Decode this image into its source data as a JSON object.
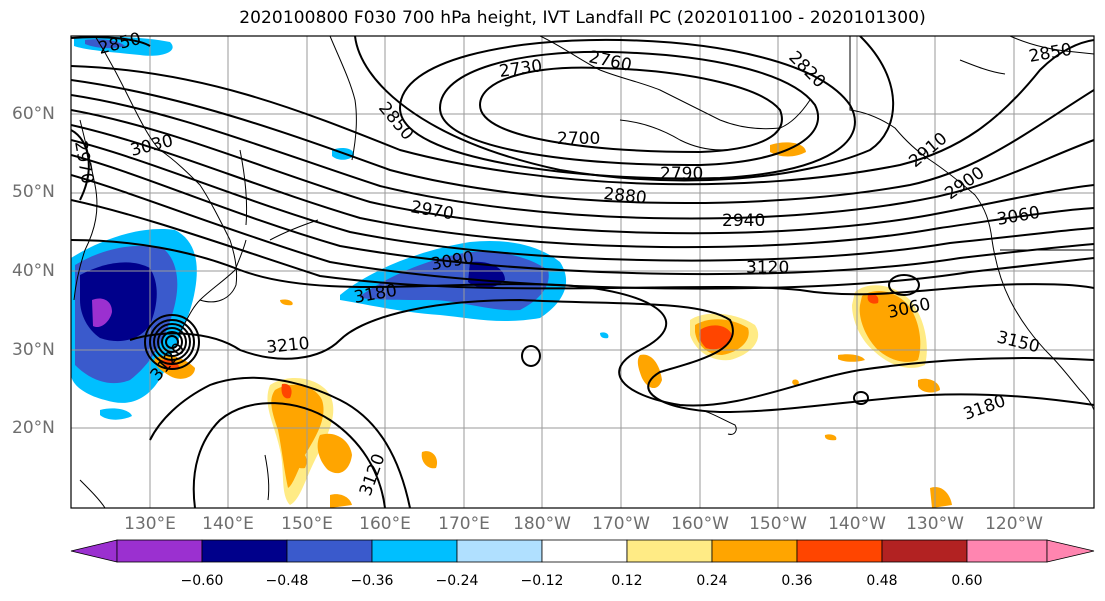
{
  "title": "2020100800 F030 700 hPa height, IVT Landfall PC (2020101100 - 2020101300)",
  "lat_labels": [
    "60°N",
    "50°N",
    "40°N",
    "30°N",
    "20°N"
  ],
  "lon_labels": [
    "130°E",
    "140°E",
    "150°E",
    "160°E",
    "170°E",
    "180°W",
    "170°W",
    "160°W",
    "150°W",
    "140°W",
    "130°W",
    "120°W"
  ],
  "contour_labels": [
    "2850",
    "2730",
    "2760",
    "2820",
    "2850",
    "2700",
    "2850",
    "3030",
    "2970",
    "2910",
    "2790",
    "2880",
    "2970",
    "2940",
    "2900",
    "3060",
    "3090",
    "3120",
    "3180",
    "3060",
    "3210",
    "3120",
    "3150",
    "3180",
    "3120"
  ],
  "colorbar": {
    "labels": [
      "−0.60",
      "−0.48",
      "−0.36",
      "−0.24",
      "−0.12",
      "0.12",
      "0.24",
      "0.36",
      "0.48",
      "0.60"
    ],
    "colors": [
      "#9b30d0",
      "#00008b",
      "#3a5acc",
      "#00bfff",
      "#b0e0ff",
      "#ffffff",
      "#ffeb85",
      "#ffa500",
      "#ff4500",
      "#b22222",
      "#ff85b0"
    ]
  },
  "map_data": {
    "projection": "equirectangular",
    "lon_range": "120°E – 110°W",
    "lat_range": "10°N – 70°N",
    "field": "700 hPa height contours with IVT landfall PC shading"
  }
}
